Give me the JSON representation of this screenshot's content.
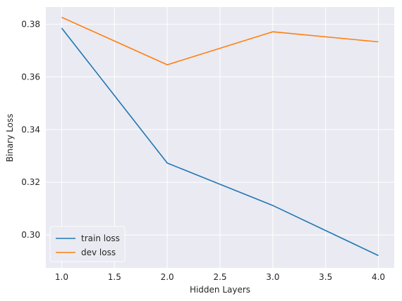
{
  "chart_data": {
    "type": "line",
    "title": "",
    "xlabel": "Hidden Layers",
    "ylabel": "Binary Loss",
    "x": [
      1.0,
      2.0,
      3.0,
      4.0
    ],
    "xlim": [
      0.85,
      4.15
    ],
    "ylim": [
      0.2875,
      0.3865
    ],
    "xticks": [
      1.0,
      1.5,
      2.0,
      2.5,
      3.0,
      3.5,
      4.0
    ],
    "xtick_labels": [
      "1.0",
      "1.5",
      "2.0",
      "2.5",
      "3.0",
      "3.5",
      "4.0"
    ],
    "yticks": [
      0.3,
      0.32,
      0.34,
      0.36,
      0.38
    ],
    "ytick_labels": [
      "0.30",
      "0.32",
      "0.34",
      "0.36",
      "0.38"
    ],
    "grid": true,
    "background": "#eaeaf2",
    "grid_color": "#ffffff",
    "legend_placement": "lower-left",
    "series": [
      {
        "name": "train loss",
        "color": "#1f77b4",
        "values": [
          0.3785,
          0.3273,
          0.3112,
          0.2922
        ]
      },
      {
        "name": "dev loss",
        "color": "#ff7f0e",
        "values": [
          0.3826,
          0.3646,
          0.3771,
          0.3733
        ]
      }
    ]
  }
}
